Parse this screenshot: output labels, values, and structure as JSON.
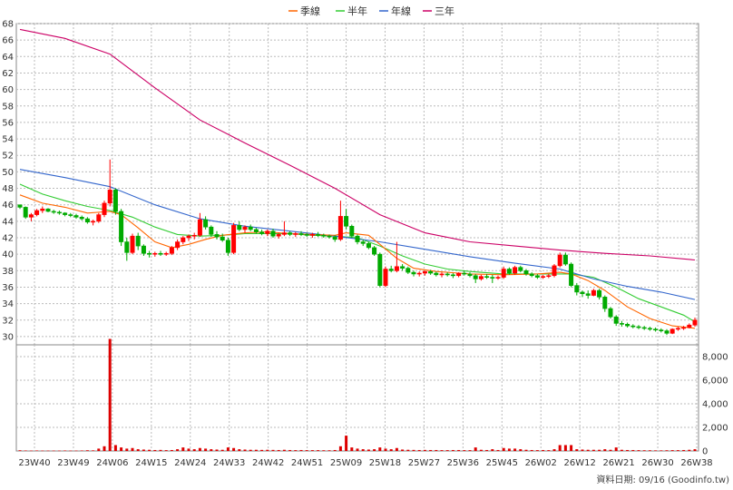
{
  "chart_data": {
    "type": "candlestick",
    "legend": [
      {
        "name": "季線",
        "color": "#ff6600"
      },
      {
        "name": "半年",
        "color": "#33cc33"
      },
      {
        "name": "年線",
        "color": "#3366cc"
      },
      {
        "name": "三年",
        "color": "#cc0066"
      }
    ],
    "price_axis": {
      "ylim": [
        29,
        68
      ],
      "ticks": [
        30,
        32,
        34,
        36,
        38,
        40,
        42,
        44,
        46,
        48,
        50,
        52,
        54,
        56,
        58,
        60,
        62,
        64,
        66,
        68
      ]
    },
    "volume_axis": {
      "ylim": [
        0,
        9000
      ],
      "ticks": [
        0,
        2000,
        4000,
        6000,
        8000
      ],
      "tick_labels": [
        "0",
        "2,000",
        "4,000",
        "6,000",
        "8,000"
      ]
    },
    "x_labels": [
      "23W40",
      "23W49",
      "24W06",
      "24W15",
      "24W24",
      "24W33",
      "24W42",
      "24W51",
      "25W09",
      "25W18",
      "25W27",
      "25W36",
      "25W45",
      "26W02",
      "26W12",
      "26W21",
      "26W30",
      "26W38"
    ],
    "grid": true,
    "colors": {
      "up": "#ff0000",
      "down": "#00aa00",
      "volume": "#dd0000",
      "grid": "#bbbbbb"
    },
    "ohlc": [
      [
        46,
        46,
        45.5,
        45.7
      ],
      [
        45.7,
        45.8,
        44.3,
        44.5
      ],
      [
        44.5,
        45,
        44,
        44.8
      ],
      [
        44.8,
        45.5,
        44.6,
        45.3
      ],
      [
        45.3,
        45.8,
        45,
        45.5
      ],
      [
        45.5,
        45.6,
        45.1,
        45.2
      ],
      [
        45.2,
        45.4,
        44.9,
        45.1
      ],
      [
        45.1,
        45.3,
        44.8,
        45
      ],
      [
        45,
        45.1,
        44.6,
        44.8
      ],
      [
        44.8,
        45,
        44.5,
        44.7
      ],
      [
        44.7,
        44.9,
        44.3,
        44.5
      ],
      [
        44.5,
        44.7,
        44.1,
        44.3
      ],
      [
        44.3,
        44.5,
        43.7,
        43.9
      ],
      [
        43.9,
        44.2,
        43.5,
        44
      ],
      [
        44,
        45,
        43.8,
        44.8
      ],
      [
        44.8,
        46.5,
        44.5,
        46.2
      ],
      [
        46.2,
        51.5,
        45.8,
        47.8
      ],
      [
        47.8,
        48,
        44.8,
        45.2
      ],
      [
        45.2,
        45.5,
        41,
        41.5
      ],
      [
        41.5,
        42,
        39.2,
        40.2
      ],
      [
        40.2,
        42.5,
        40,
        42.2
      ],
      [
        42.2,
        42.6,
        40.5,
        41
      ],
      [
        41,
        41.2,
        39.8,
        40.1
      ],
      [
        40.1,
        40.4,
        39.6,
        40
      ],
      [
        40,
        40.3,
        39.7,
        40.1
      ],
      [
        40.1,
        40.4,
        39.8,
        40
      ],
      [
        40,
        40.3,
        39.8,
        40.1
      ],
      [
        40.1,
        41,
        39.9,
        40.8
      ],
      [
        40.8,
        41.8,
        40.5,
        41.5
      ],
      [
        41.5,
        42.2,
        41.2,
        42
      ],
      [
        42,
        42.4,
        41.6,
        42.2
      ],
      [
        42.2,
        42.6,
        41.8,
        42.3
      ],
      [
        42.3,
        45,
        42.1,
        44.2
      ],
      [
        44.2,
        44.6,
        43,
        43.3
      ],
      [
        43.3,
        43.5,
        42.1,
        42.4
      ],
      [
        42.4,
        42.8,
        41.8,
        42.1
      ],
      [
        42.1,
        42.5,
        41.5,
        41.7
      ],
      [
        41.7,
        42,
        39.8,
        40.2
      ],
      [
        40.2,
        43.8,
        40,
        43.5
      ],
      [
        43.5,
        44,
        42.8,
        43
      ],
      [
        43,
        43.5,
        42.6,
        43.3
      ],
      [
        43.3,
        43.6,
        42.8,
        43
      ],
      [
        43,
        43.2,
        42.5,
        42.7
      ],
      [
        42.7,
        43,
        42.3,
        42.5
      ],
      [
        42.5,
        43,
        42.2,
        42.8
      ],
      [
        42.8,
        43.1,
        42,
        42.2
      ],
      [
        42.2,
        42.6,
        41.9,
        42.4
      ],
      [
        42.4,
        44,
        42.2,
        42.6
      ],
      [
        42.6,
        42.8,
        42.2,
        42.4
      ],
      [
        42.4,
        42.7,
        42.1,
        42.5
      ],
      [
        42.5,
        42.8,
        42.2,
        42.4
      ],
      [
        42.4,
        42.6,
        42.1,
        42.3
      ],
      [
        42.3,
        42.6,
        42,
        42.4
      ],
      [
        42.4,
        42.7,
        42.1,
        42.3
      ],
      [
        42.3,
        42.5,
        42,
        42.2
      ],
      [
        42.2,
        42.4,
        41.9,
        42.1
      ],
      [
        42.1,
        42.3,
        41.5,
        41.8
      ],
      [
        41.8,
        46.5,
        41.6,
        44.6
      ],
      [
        44.6,
        45.5,
        43,
        43.4
      ],
      [
        43.4,
        43.6,
        42,
        42.2
      ],
      [
        42.2,
        42.4,
        41.2,
        41.5
      ],
      [
        41.5,
        41.8,
        41,
        41.3
      ],
      [
        41.3,
        41.5,
        40.6,
        40.8
      ],
      [
        40.8,
        41,
        39.8,
        40
      ],
      [
        40,
        40.2,
        36,
        36.2
      ],
      [
        36.2,
        38.5,
        36,
        38.2
      ],
      [
        38.2,
        38.6,
        37.8,
        38
      ],
      [
        38,
        41.5,
        37.8,
        38.5
      ],
      [
        38.5,
        38.8,
        38,
        38.3
      ],
      [
        38.3,
        38.5,
        37.6,
        37.8
      ],
      [
        37.8,
        38,
        37.3,
        37.6
      ],
      [
        37.6,
        37.9,
        37.3,
        37.7
      ],
      [
        37.7,
        38,
        37.4,
        37.9
      ],
      [
        37.9,
        38.1,
        37.5,
        37.7
      ],
      [
        37.7,
        37.9,
        37.3,
        37.5
      ],
      [
        37.5,
        37.8,
        37.2,
        37.6
      ],
      [
        37.6,
        37.8,
        37.3,
        37.5
      ],
      [
        37.5,
        37.7,
        37.1,
        37.4
      ],
      [
        37.4,
        37.8,
        37.2,
        37.7
      ],
      [
        37.7,
        38,
        37.4,
        37.6
      ],
      [
        37.6,
        37.8,
        37.2,
        37.4
      ],
      [
        37.4,
        37.6,
        36.5,
        37
      ],
      [
        37,
        37.5,
        36.8,
        37.3
      ],
      [
        37.3,
        37.6,
        37,
        37.2
      ],
      [
        37.2,
        37.5,
        36.5,
        37.1
      ],
      [
        37.1,
        37.4,
        36.9,
        37.2
      ],
      [
        37.2,
        38.5,
        37,
        38.2
      ],
      [
        38.2,
        38.4,
        37.5,
        37.7
      ],
      [
        37.7,
        38.6,
        37.5,
        38.4
      ],
      [
        38.4,
        38.6,
        37.8,
        38
      ],
      [
        38,
        38.2,
        37.4,
        37.6
      ],
      [
        37.6,
        37.8,
        37.2,
        37.4
      ],
      [
        37.4,
        37.6,
        37,
        37.2
      ],
      [
        37.2,
        37.5,
        37,
        37.3
      ],
      [
        37.3,
        37.6,
        37.1,
        37.4
      ],
      [
        37.4,
        38.8,
        37.2,
        38.6
      ],
      [
        38.6,
        40.2,
        38.4,
        39.9
      ],
      [
        39.9,
        40.2,
        38.6,
        38.8
      ],
      [
        38.8,
        39,
        36,
        36.2
      ],
      [
        36.2,
        36.5,
        35,
        35.4
      ],
      [
        35.4,
        35.6,
        34.8,
        35.2
      ],
      [
        35.2,
        35.6,
        34.6,
        35
      ],
      [
        35,
        35.8,
        34.9,
        35.6
      ],
      [
        35.6,
        35.8,
        34.5,
        34.8
      ],
      [
        34.8,
        35,
        33,
        33.4
      ],
      [
        33.4,
        33.6,
        32.2,
        32.4
      ],
      [
        32.4,
        32.6,
        31.3,
        31.6
      ],
      [
        31.6,
        31.9,
        31.2,
        31.5
      ],
      [
        31.5,
        31.7,
        31.1,
        31.3
      ],
      [
        31.3,
        31.5,
        31,
        31.2
      ],
      [
        31.2,
        31.4,
        30.9,
        31.1
      ],
      [
        31.1,
        31.3,
        30.8,
        31
      ],
      [
        31,
        31.2,
        30.7,
        30.9
      ],
      [
        30.9,
        31.1,
        30.6,
        30.8
      ],
      [
        30.8,
        31,
        30.5,
        30.7
      ],
      [
        30.7,
        30.9,
        30.2,
        30.4
      ],
      [
        30.4,
        31,
        30.3,
        30.9
      ],
      [
        30.9,
        31.2,
        30.7,
        31
      ],
      [
        31,
        31.3,
        30.8,
        31.1
      ],
      [
        31.1,
        31.6,
        31,
        31.4
      ],
      [
        31.4,
        32.3,
        31.2,
        32
      ]
    ],
    "volume": [
      60,
      40,
      30,
      40,
      30,
      30,
      30,
      30,
      40,
      30,
      30,
      40,
      60,
      50,
      200,
      400,
      9500,
      500,
      300,
      200,
      250,
      150,
      120,
      100,
      80,
      90,
      70,
      80,
      150,
      300,
      200,
      150,
      250,
      200,
      150,
      120,
      100,
      300,
      250,
      150,
      120,
      100,
      100,
      90,
      100,
      90,
      80,
      100,
      80,
      70,
      80,
      70,
      70,
      70,
      60,
      60,
      80,
      400,
      1300,
      300,
      200,
      150,
      120,
      150,
      300,
      200,
      150,
      250,
      120,
      100,
      90,
      80,
      90,
      80,
      80,
      70,
      70,
      80,
      80,
      70,
      70,
      300,
      100,
      80,
      150,
      80,
      250,
      200,
      200,
      150,
      100,
      80,
      70,
      80,
      70,
      150,
      500,
      500,
      500,
      150,
      120,
      100,
      100,
      100,
      150,
      100,
      300,
      100,
      80,
      80,
      70,
      60,
      60,
      50,
      50,
      60,
      70,
      70,
      80,
      100,
      150
    ],
    "ma_quarter": [
      [
        0,
        47.2
      ],
      [
        4,
        46.2
      ],
      [
        8,
        45.7
      ],
      [
        12,
        45
      ],
      [
        16,
        45.2
      ],
      [
        18,
        44.8
      ],
      [
        21,
        43.2
      ],
      [
        24,
        41.5
      ],
      [
        27,
        40.8
      ],
      [
        30,
        41.2
      ],
      [
        33,
        41.8
      ],
      [
        36,
        42.3
      ],
      [
        40,
        42.6
      ],
      [
        44,
        42.7
      ],
      [
        48,
        42.5
      ],
      [
        52,
        42.4
      ],
      [
        56,
        42.3
      ],
      [
        58,
        42.6
      ],
      [
        62,
        42.3
      ],
      [
        64,
        41.2
      ],
      [
        67,
        39.5
      ],
      [
        70,
        38.3
      ],
      [
        74,
        37.9
      ],
      [
        80,
        37.6
      ],
      [
        86,
        37.5
      ],
      [
        92,
        37.6
      ],
      [
        96,
        37.8
      ],
      [
        98,
        37.6
      ],
      [
        101,
        36.8
      ],
      [
        104,
        35.6
      ],
      [
        108,
        33.6
      ],
      [
        112,
        32.2
      ],
      [
        116,
        31.3
      ],
      [
        120,
        31
      ]
    ],
    "ma_half": [
      [
        0,
        48.5
      ],
      [
        4,
        47.3
      ],
      [
        8,
        46.5
      ],
      [
        12,
        45.8
      ],
      [
        16,
        45.3
      ],
      [
        20,
        44.5
      ],
      [
        24,
        43.3
      ],
      [
        28,
        42.4
      ],
      [
        32,
        42.2
      ],
      [
        36,
        42.3
      ],
      [
        40,
        42.5
      ],
      [
        44,
        42.5
      ],
      [
        48,
        42.5
      ],
      [
        52,
        42.3
      ],
      [
        56,
        42.2
      ],
      [
        60,
        42
      ],
      [
        64,
        41
      ],
      [
        68,
        39.8
      ],
      [
        72,
        38.8
      ],
      [
        76,
        38.2
      ],
      [
        80,
        37.9
      ],
      [
        86,
        37.6
      ],
      [
        92,
        37.6
      ],
      [
        98,
        37.6
      ],
      [
        102,
        37.2
      ],
      [
        106,
        36
      ],
      [
        110,
        34.6
      ],
      [
        114,
        33.6
      ],
      [
        118,
        32.6
      ],
      [
        120,
        31.8
      ]
    ],
    "ma_year": [
      [
        0,
        50.3
      ],
      [
        8,
        49.3
      ],
      [
        16,
        48.2
      ],
      [
        24,
        46
      ],
      [
        32,
        44.3
      ],
      [
        40,
        43.4
      ],
      [
        48,
        42.8
      ],
      [
        56,
        42.2
      ],
      [
        64,
        41.5
      ],
      [
        72,
        40.6
      ],
      [
        80,
        39.7
      ],
      [
        88,
        38.9
      ],
      [
        96,
        38.2
      ],
      [
        102,
        37
      ],
      [
        108,
        36.1
      ],
      [
        114,
        35.4
      ],
      [
        120,
        34.5
      ]
    ],
    "ma_3year": [
      [
        0,
        67.3
      ],
      [
        8,
        66.2
      ],
      [
        16,
        64.3
      ],
      [
        24,
        60.2
      ],
      [
        32,
        56.3
      ],
      [
        40,
        53.5
      ],
      [
        48,
        50.8
      ],
      [
        56,
        48
      ],
      [
        64,
        44.8
      ],
      [
        72,
        42.6
      ],
      [
        80,
        41.5
      ],
      [
        88,
        41
      ],
      [
        96,
        40.5
      ],
      [
        104,
        40.1
      ],
      [
        112,
        39.8
      ],
      [
        120,
        39.3
      ]
    ],
    "footer_text": "資料日期: 09/16 (Goodinfo.tw)"
  }
}
